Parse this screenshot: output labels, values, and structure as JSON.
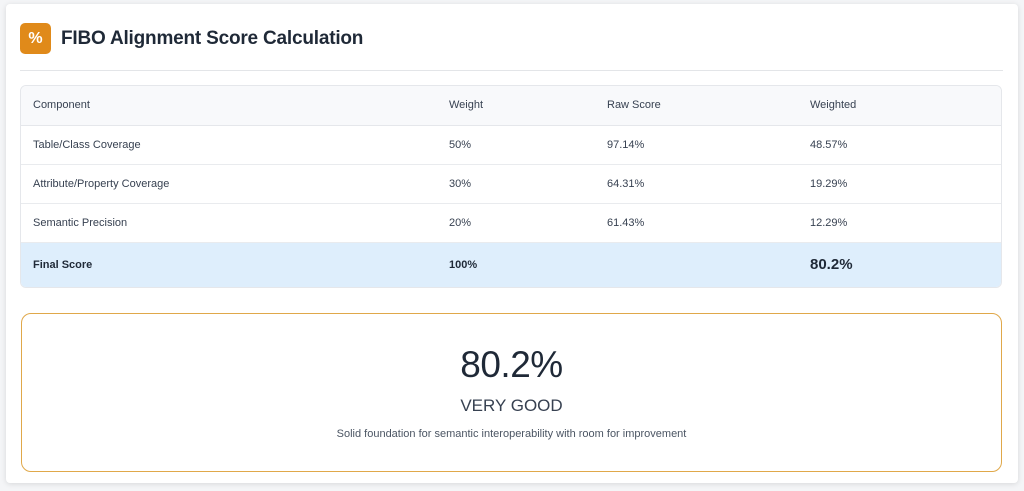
{
  "header": {
    "icon": "percent-icon",
    "icon_glyph": "%",
    "title": "FIBO Alignment Score Calculation"
  },
  "table": {
    "columns": [
      "Component",
      "Weight",
      "Raw Score",
      "Weighted"
    ],
    "rows": [
      {
        "component": "Table/Class Coverage",
        "weight": "50%",
        "raw": "97.14%",
        "weighted": "48.57%"
      },
      {
        "component": "Attribute/Property Coverage",
        "weight": "30%",
        "raw": "64.31%",
        "weighted": "19.29%"
      },
      {
        "component": "Semantic Precision",
        "weight": "20%",
        "raw": "61.43%",
        "weighted": "12.29%"
      }
    ],
    "final": {
      "component": "Final Score",
      "weight": "100%",
      "raw": "",
      "weighted": "80.2%"
    }
  },
  "summary": {
    "score": "80.2%",
    "grade": "VERY GOOD",
    "description": "Solid foundation for semantic interoperability with room for improvement"
  },
  "colors": {
    "accent": "#e08a1a",
    "final_row_bg": "#deeefc",
    "summary_border": "#e0a84a"
  }
}
